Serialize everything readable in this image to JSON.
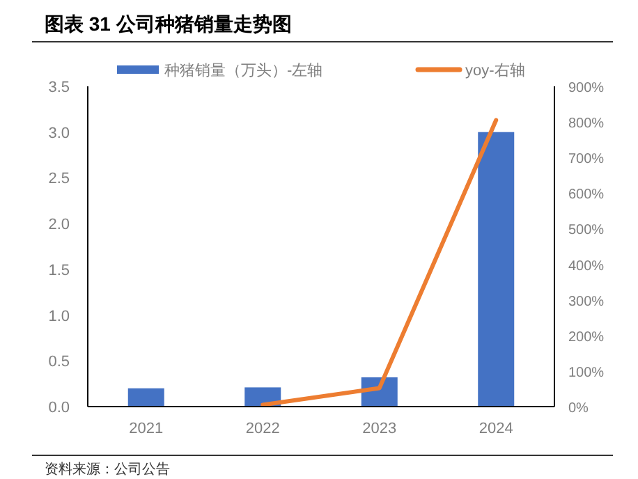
{
  "chart_data": {
    "type": "bar",
    "title": "图表 31 公司种猪销量走势图",
    "categories": [
      "2021",
      "2022",
      "2023",
      "2024"
    ],
    "series": [
      {
        "name": "种猪销量（万头）-左轴",
        "color": "#4472c4",
        "values": [
          0.2,
          0.21,
          0.32,
          3.0
        ]
      },
      {
        "name": "yoy-右轴",
        "type": "line",
        "axis": "y2",
        "color": "#ed7d31",
        "values": [
          null,
          5,
          52,
          805
        ]
      }
    ],
    "ylim": [
      0,
      3.5
    ],
    "yticks": [
      {
        "value": 0,
        "label": "0.0"
      },
      {
        "value": 0.5,
        "label": "0.5"
      },
      {
        "value": 1,
        "label": "1.0"
      },
      {
        "value": 1.5,
        "label": "1.5"
      },
      {
        "value": 2,
        "label": "2.0"
      },
      {
        "value": 2.5,
        "label": "2.5"
      },
      {
        "value": 3,
        "label": "3.0"
      },
      {
        "value": 3.5,
        "label": "3.5"
      }
    ],
    "y2lim": [
      0,
      900
    ],
    "y2ticks": [
      {
        "value": 0,
        "label": "0%"
      },
      {
        "value": 100,
        "label": "100%"
      },
      {
        "value": 200,
        "label": "200%"
      },
      {
        "value": 300,
        "label": "300%"
      },
      {
        "value": 400,
        "label": "400%"
      },
      {
        "value": 500,
        "label": "500%"
      },
      {
        "value": 600,
        "label": "600%"
      },
      {
        "value": 700,
        "label": "700%"
      },
      {
        "value": 800,
        "label": "800%"
      },
      {
        "value": 900,
        "label": "900%"
      }
    ],
    "legend": "top",
    "grid": false,
    "annotations": [
      "资料来源：公司公告"
    ]
  }
}
